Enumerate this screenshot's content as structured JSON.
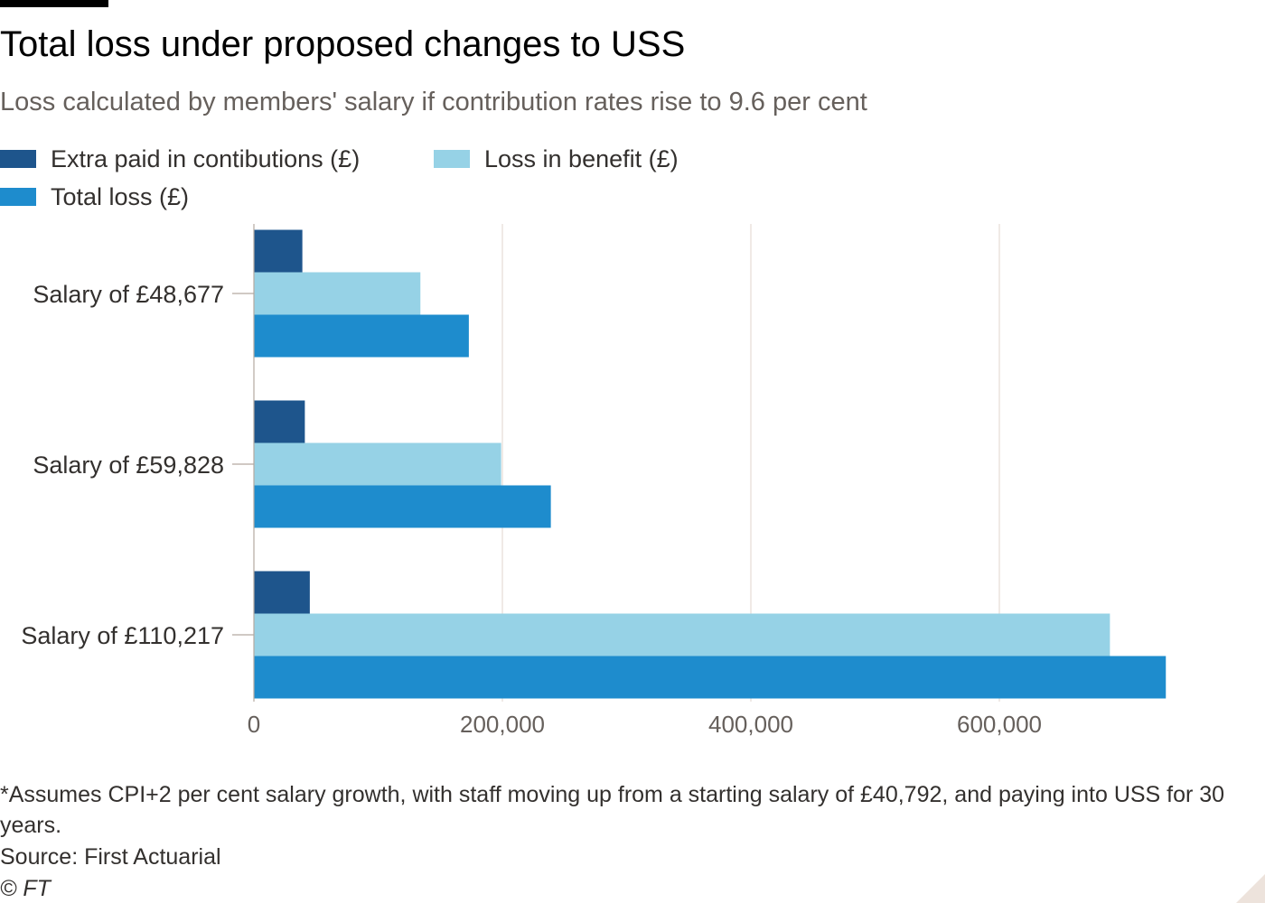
{
  "title": "Total loss under proposed changes to USS",
  "subtitle": "Loss calculated by members' salary if contribution rates rise to 9.6 per cent",
  "footnote": "*Assumes CPI+2 per cent salary growth, with staff moving up from a starting salary of £40,792, and paying into USS for 30 years.",
  "source": "Source: First Actuarial",
  "credit": "© FT",
  "colors": {
    "extra_paid": "#1e558c",
    "loss_benefit": "#96d2e6",
    "total_loss": "#1e8ccd",
    "grid": "#e6ddd6",
    "axis": "#b3a9a0",
    "tick_text": "#66605c",
    "category_text": "#33302e"
  },
  "legend": [
    {
      "label": "Extra paid in contibutions (£)",
      "color": "#1e558c"
    },
    {
      "label": "Loss in benefit (£)",
      "color": "#96d2e6"
    },
    {
      "label": "Total loss (£)",
      "color": "#1e8ccd"
    }
  ],
  "chart_data": {
    "type": "bar",
    "orientation": "horizontal",
    "title": "Total loss under proposed changes to USS",
    "subtitle": "Loss calculated by members' salary if contribution rates rise to 9.6 per cent",
    "categories": [
      "Salary of £48,677",
      "Salary of £59,828",
      "Salary of £110,217"
    ],
    "series": [
      {
        "name": "Extra paid in contibutions (£)",
        "color": "#1e558c",
        "values": [
          39000,
          41000,
          45000
        ]
      },
      {
        "name": "Loss in benefit (£)",
        "color": "#96d2e6",
        "values": [
          134000,
          199000,
          689000
        ]
      },
      {
        "name": "Total loss (£)",
        "color": "#1e8ccd",
        "values": [
          173000,
          239000,
          734000
        ]
      }
    ],
    "xlim": [
      0,
      800000
    ],
    "xticks": [
      0,
      200000,
      400000,
      600000
    ],
    "xtick_labels": [
      "0",
      "200,000",
      "400,000",
      "600,000"
    ],
    "grid": true,
    "legend_position": "top"
  }
}
